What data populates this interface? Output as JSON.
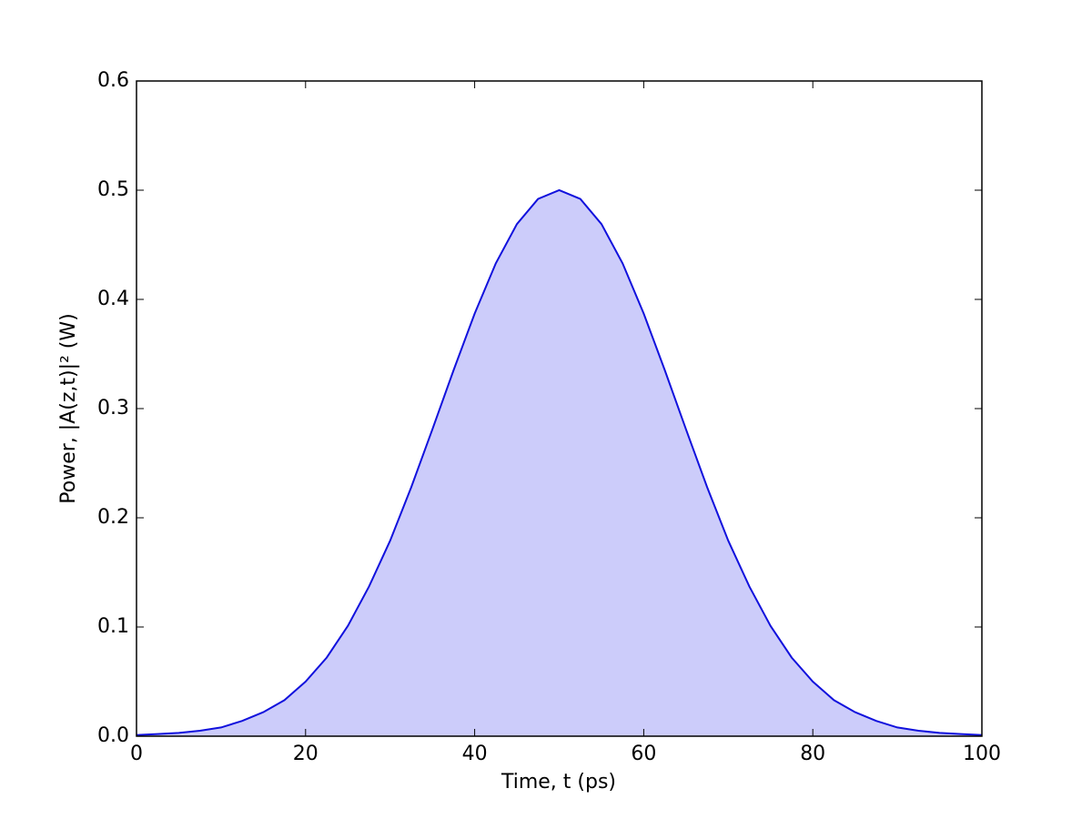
{
  "chart_data": {
    "type": "area",
    "xlabel": "Time, t (ps)",
    "ylabel": "Power, |A(z,t)|² (W)",
    "x": [
      0,
      2.5,
      5,
      7.5,
      10,
      12.5,
      15,
      17.5,
      20,
      22.5,
      25,
      27.5,
      30,
      32.5,
      35,
      37.5,
      40,
      42.5,
      45,
      47.5,
      50,
      52.5,
      55,
      57.5,
      60,
      62.5,
      65,
      67.5,
      70,
      72.5,
      75,
      77.5,
      80,
      82.5,
      85,
      87.5,
      90,
      92.5,
      95,
      97.5,
      100
    ],
    "values": [
      0.001,
      0.002,
      0.003,
      0.005,
      0.008,
      0.014,
      0.022,
      0.033,
      0.05,
      0.072,
      0.101,
      0.137,
      0.179,
      0.228,
      0.281,
      0.335,
      0.387,
      0.433,
      0.469,
      0.492,
      0.5,
      0.492,
      0.469,
      0.433,
      0.387,
      0.335,
      0.281,
      0.228,
      0.179,
      0.137,
      0.101,
      0.072,
      0.05,
      0.033,
      0.022,
      0.014,
      0.008,
      0.005,
      0.003,
      0.002,
      0.001
    ],
    "color": "#1111dd",
    "fill_color": "#ccccfa",
    "xlim": [
      0,
      100
    ],
    "xticks": [
      0,
      20,
      40,
      60,
      80,
      100
    ],
    "ylim": [
      0,
      0.6
    ],
    "yticks": [
      {
        "value": 0,
        "label": "0.0"
      },
      {
        "value": 0.1,
        "label": "0.1"
      },
      {
        "value": 0.2,
        "label": "0.2"
      },
      {
        "value": 0.3,
        "label": "0.3"
      },
      {
        "value": 0.4,
        "label": "0.4"
      },
      {
        "value": 0.5,
        "label": "0.5"
      },
      {
        "value": 0.6,
        "label": "0.6"
      }
    ],
    "grid": false
  }
}
